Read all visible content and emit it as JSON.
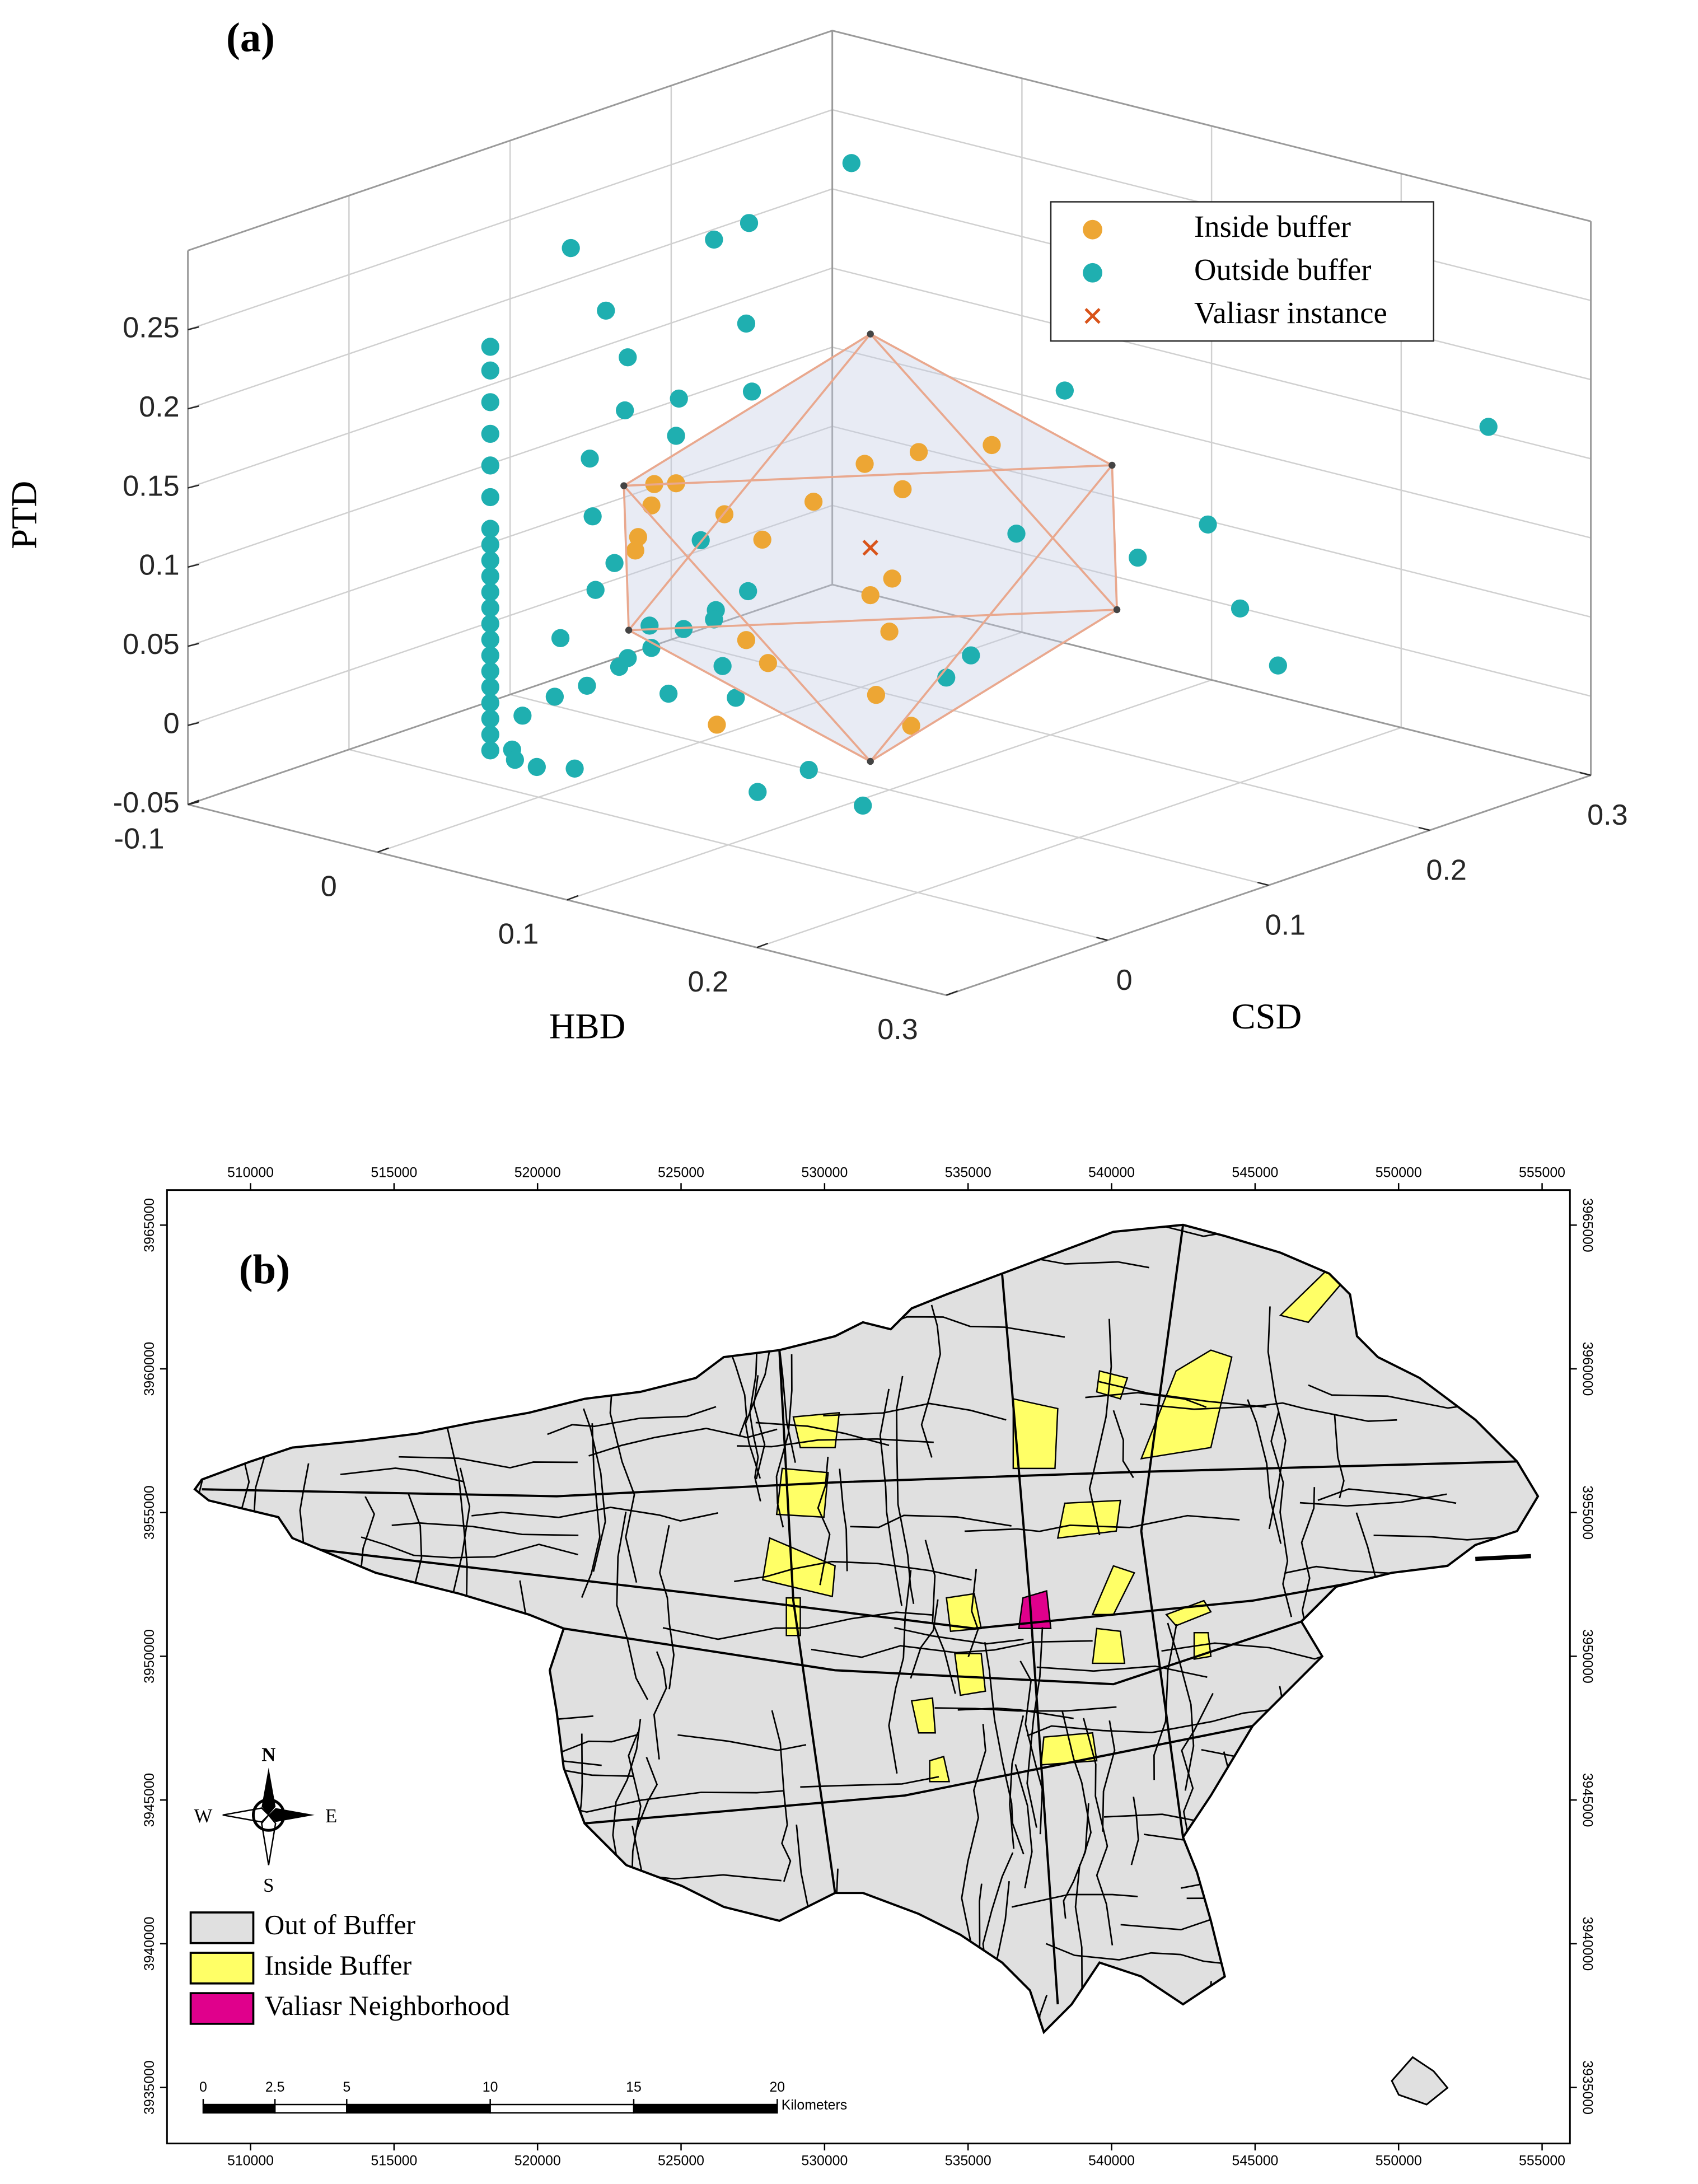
{
  "chart_data": [
    {
      "type": "scatter3d",
      "panel": "(a)",
      "xlabel": "HBD",
      "ylabel": "CSD",
      "zlabel": "PTD",
      "xlim": [
        -0.1,
        0.3
      ],
      "ylim": [
        -0.1,
        0.3
      ],
      "zlim": [
        -0.05,
        0.3
      ],
      "xticks": [
        -0.1,
        0,
        0.1,
        0.2,
        0.3
      ],
      "yticks": [
        0,
        0.1,
        0.2,
        0.3
      ],
      "zticks": [
        -0.05,
        0,
        0.05,
        0.1,
        0.15,
        0.2,
        0.25
      ],
      "grid": true,
      "legend": "upper right",
      "series": [
        {
          "name": "Inside buffer",
          "color": "#EDA634",
          "marker": "circle",
          "x": [
            0.01,
            0.0,
            0.01,
            0.0,
            0.03,
            0.05,
            0.06,
            0.07,
            0.09,
            0.09,
            0.12,
            0.09,
            0.11,
            0.05,
            0.07,
            0.06,
            0.11,
            0.12,
            0.1,
            0.03
          ],
          "y": [
            0.06,
            0.07,
            0.05,
            0.06,
            0.08,
            0.08,
            0.1,
            0.12,
            0.13,
            0.12,
            0.14,
            0.1,
            0.09,
            0.07,
            0.06,
            0.04,
            0.08,
            0.09,
            0.1,
            0.05
          ],
          "z": [
            0.13,
            0.11,
            0.1,
            0.085,
            0.11,
            0.1,
            0.12,
            0.14,
            0.15,
            0.13,
            0.16,
            0.07,
            0.09,
            0.04,
            0.035,
            0.0,
            0.02,
            0.0,
            0.05,
            0.14
          ]
        },
        {
          "name": "Outside buffer",
          "color": "#1FAFB0",
          "marker": "circle",
          "x": [
            0,
            0,
            0,
            0,
            0,
            0,
            0,
            0,
            0,
            0,
            0,
            0,
            0,
            0,
            0,
            0,
            0,
            0,
            0,
            0,
            0,
            0,
            0,
            0,
            0,
            0,
            0,
            0,
            0,
            0.02,
            0.03,
            0.05,
            0.07,
            0.02,
            0.03,
            0.02,
            0.04,
            0.01,
            0.05,
            0.03,
            0.06,
            0.02,
            0.04,
            0.03,
            0.06,
            0.05,
            0.08,
            0.07,
            0.0,
            0.01,
            0.03,
            0.05,
            0.06,
            0.05,
            0.07,
            0.08,
            0.15,
            0.28,
            0.15,
            0.18,
            0.2,
            0.2,
            0.22,
            0.16,
            0.13,
            0.1,
            0.09,
            0.12
          ],
          "y": [
            -0.03,
            -0.03,
            -0.03,
            -0.03,
            -0.03,
            -0.03,
            -0.03,
            -0.03,
            -0.03,
            -0.03,
            -0.03,
            -0.03,
            -0.03,
            -0.03,
            -0.03,
            -0.03,
            -0.03,
            -0.03,
            -0.03,
            -0.03,
            -0.03,
            -0.01,
            0.01,
            0.03,
            0.05,
            0.07,
            0.09,
            0.11,
            0.13,
            -0.04,
            -0.05,
            -0.06,
            -0.06,
            -0.01,
            0.0,
            0.01,
            0.0,
            0.02,
            0.01,
            0.02,
            0.01,
            0.03,
            0.04,
            0.05,
            0.03,
            0.05,
            0.02,
            0.04,
            0.02,
            0.03,
            0.02,
            0.05,
            0.06,
            0.07,
            0.05,
            0.1,
            0.15,
            0.26,
            0.12,
            0.16,
            0.18,
            0.2,
            0.2,
            0.08,
            0.1,
            0.05,
            0.03,
            0.06
          ],
          "z": [
            -0.01,
            0,
            0.01,
            0.02,
            0.03,
            0.04,
            0.05,
            0.06,
            0.07,
            0.08,
            0.09,
            0.1,
            0.11,
            0.12,
            0.13,
            0.15,
            0.17,
            0.19,
            0.21,
            0.23,
            0.245,
            0.005,
            0.01,
            0.01,
            0.015,
            0.02,
            0.025,
            0.03,
            0.035,
            0.0,
            0.0,
            0.005,
            0.01,
            0.06,
            0.09,
            0.13,
            0.11,
            0.16,
            0.07,
            0.04,
            0.03,
            0.19,
            0.2,
            0.17,
            0.12,
            0.06,
            0.05,
            0.02,
            0.29,
            0.25,
            0.23,
            0.3,
            0.31,
            0.24,
            0.21,
            0.34,
            0.2,
            0.178,
            0.12,
            0.1,
            0.12,
            0.06,
            0.03,
            0.06,
            0.03,
            -0.02,
            -0.03,
            -0.04
          ]
        },
        {
          "name": "Valiasr instance",
          "color": "#D95319",
          "marker": "x",
          "x": [
            0.09
          ],
          "y": [
            0.1
          ],
          "z": [
            0.1
          ]
        }
      ],
      "buffer": {
        "face_color": "#C5CEE2",
        "edge_color": "#E9A88E",
        "x": [
          0.22,
          -0.04,
          0.09,
          0.09,
          0.09,
          0.09
        ],
        "y": [
          0.1,
          0.1,
          0.25,
          -0.05,
          0.1,
          0.1
        ],
        "z": [
          0.1,
          0.1,
          0.1,
          0.1,
          0.235,
          -0.035
        ]
      }
    },
    {
      "type": "map",
      "panel": "(b)",
      "xlim": [
        507090,
        555970
      ],
      "ylim": [
        3933050,
        3966220
      ],
      "xticks": [
        510000,
        515000,
        520000,
        525000,
        530000,
        535000,
        540000,
        545000,
        550000,
        555000
      ],
      "yticks": [
        3935000,
        3940000,
        3945000,
        3950000,
        3955000,
        3960000,
        3965000
      ],
      "legend": [
        {
          "name": "Out of Buffer",
          "color": "#E0E0E0"
        },
        {
          "name": "Inside Buffer",
          "color": "#FFFF66"
        },
        {
          "name": "Valiasr Neighborhood",
          "color": "#E0008C"
        }
      ],
      "compass": {
        "n": "N",
        "e": "E",
        "s": "S",
        "w": "W"
      },
      "scalebar": {
        "ticks": [
          0,
          2.5,
          5,
          10,
          15,
          20
        ],
        "unit": "Kilometers"
      }
    }
  ]
}
